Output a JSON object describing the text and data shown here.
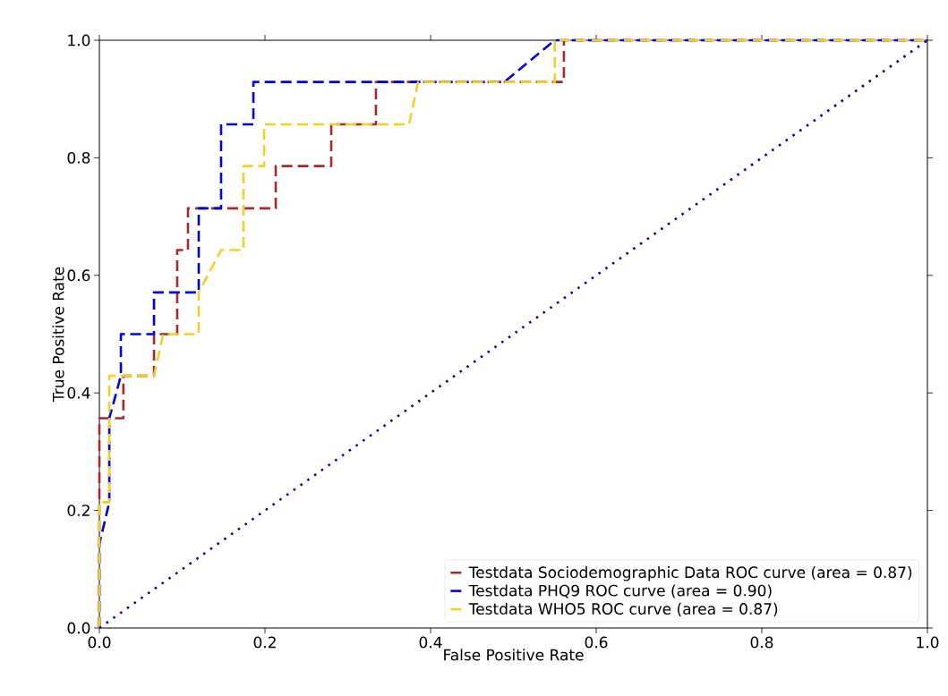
{
  "chart_data": {
    "type": "line",
    "xlabel": "False Positive Rate",
    "ylabel": "True Positive Rate",
    "xlim": [
      0,
      1
    ],
    "ylim": [
      0,
      1
    ],
    "xticks": [
      {
        "value": 0,
        "label": "0.0"
      },
      {
        "value": 0.2,
        "label": "0.2"
      },
      {
        "value": 0.4,
        "label": "0.4"
      },
      {
        "value": 0.6,
        "label": "0.6"
      },
      {
        "value": 0.8,
        "label": "0.8"
      },
      {
        "value": 1,
        "label": "1.0"
      }
    ],
    "yticks": [
      {
        "value": 0,
        "label": "0.0"
      },
      {
        "value": 0.2,
        "label": "0.2"
      },
      {
        "value": 0.4,
        "label": "0.4"
      },
      {
        "value": 0.6,
        "label": "0.6"
      },
      {
        "value": 0.8,
        "label": "0.8"
      },
      {
        "value": 1,
        "label": "1.0"
      }
    ],
    "legend": "bottom right",
    "line_style": "dashed",
    "series": [
      {
        "name": "Testdata Sociodemographic Data ROC curve (area = 0.87)",
        "color": "#a52a2a",
        "x": [
          0,
          0,
          0.01,
          0.01,
          0.029,
          0.029,
          0.066,
          0.066,
          0.094,
          0.094,
          0.107,
          0.107,
          0.213,
          0.213,
          0.28,
          0.28,
          0.334,
          0.334,
          0.561,
          0.561,
          1
        ],
        "values": [
          0,
          0.357,
          0.357,
          0.357,
          0.357,
          0.429,
          0.429,
          0.5,
          0.5,
          0.643,
          0.643,
          0.714,
          0.714,
          0.786,
          0.786,
          0.857,
          0.857,
          0.929,
          0.929,
          1,
          1
        ]
      },
      {
        "name": "Testdata PHQ9 ROC curve (area = 0.90)",
        "color": "#0000e0",
        "x": [
          0,
          0,
          0.012,
          0.012,
          0.026,
          0.026,
          0.066,
          0.066,
          0.12,
          0.12,
          0.147,
          0.147,
          0.186,
          0.186,
          0.489,
          0.55,
          1
        ],
        "values": [
          0,
          0.143,
          0.214,
          0.357,
          0.429,
          0.5,
          0.5,
          0.571,
          0.571,
          0.714,
          0.714,
          0.857,
          0.857,
          0.929,
          0.929,
          1,
          1
        ]
      },
      {
        "name": "Testdata WHO5 ROC curve (area = 0.87)",
        "color": "#f2cf2b",
        "x": [
          0,
          0,
          0.012,
          0.012,
          0.066,
          0.077,
          0.12,
          0.12,
          0.147,
          0.174,
          0.174,
          0.199,
          0.199,
          0.374,
          0.385,
          0.55,
          0.55,
          1
        ],
        "values": [
          0,
          0.214,
          0.214,
          0.429,
          0.429,
          0.5,
          0.5,
          0.571,
          0.643,
          0.643,
          0.786,
          0.786,
          0.857,
          0.857,
          0.929,
          0.929,
          1,
          1
        ]
      },
      {
        "color": "#000080",
        "line_style": "dotted",
        "x": [
          0,
          1
        ],
        "values": [
          0,
          1
        ]
      }
    ]
  }
}
